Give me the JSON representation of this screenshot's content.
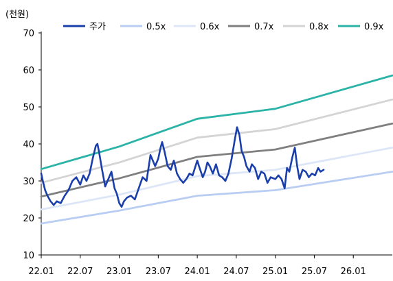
{
  "chart_data": {
    "type": "line",
    "unit_label": "(천원)",
    "ylim": [
      10,
      70
    ],
    "y_ticks": [
      10,
      20,
      30,
      40,
      50,
      60,
      70
    ],
    "x_ticks": [
      "22.01",
      "22.07",
      "23.01",
      "23.07",
      "24.01",
      "24.07",
      "25.01",
      "25.07",
      "26.01"
    ],
    "grid": false,
    "legend_position": "top",
    "series": [
      {
        "name": "주가",
        "color": "#1a3faa",
        "points": [
          [
            2022.0,
            32.0
          ],
          [
            2022.02,
            30.0
          ],
          [
            2022.05,
            27.5
          ],
          [
            2022.08,
            26.0
          ],
          [
            2022.12,
            24.5
          ],
          [
            2022.16,
            23.5
          ],
          [
            2022.2,
            24.5
          ],
          [
            2022.25,
            24.0
          ],
          [
            2022.3,
            26.0
          ],
          [
            2022.35,
            27.5
          ],
          [
            2022.4,
            30.0
          ],
          [
            2022.45,
            31.0
          ],
          [
            2022.5,
            29.0
          ],
          [
            2022.54,
            31.5
          ],
          [
            2022.58,
            30.0
          ],
          [
            2022.62,
            32.0
          ],
          [
            2022.66,
            36.0
          ],
          [
            2022.7,
            39.5
          ],
          [
            2022.72,
            40.0
          ],
          [
            2022.74,
            38.0
          ],
          [
            2022.78,
            33.0
          ],
          [
            2022.82,
            28.5
          ],
          [
            2022.86,
            30.5
          ],
          [
            2022.9,
            32.5
          ],
          [
            2022.94,
            28.0
          ],
          [
            2022.97,
            26.5
          ],
          [
            2023.0,
            24.0
          ],
          [
            2023.03,
            23.0
          ],
          [
            2023.06,
            24.5
          ],
          [
            2023.1,
            25.5
          ],
          [
            2023.15,
            26.0
          ],
          [
            2023.2,
            25.0
          ],
          [
            2023.25,
            28.0
          ],
          [
            2023.3,
            31.0
          ],
          [
            2023.35,
            30.0
          ],
          [
            2023.4,
            37.0
          ],
          [
            2023.43,
            35.5
          ],
          [
            2023.46,
            34.0
          ],
          [
            2023.5,
            36.0
          ],
          [
            2023.53,
            39.0
          ],
          [
            2023.55,
            40.5
          ],
          [
            2023.58,
            38.0
          ],
          [
            2023.62,
            34.0
          ],
          [
            2023.66,
            33.0
          ],
          [
            2023.7,
            35.5
          ],
          [
            2023.74,
            32.0
          ],
          [
            2023.78,
            30.5
          ],
          [
            2023.82,
            29.5
          ],
          [
            2023.86,
            30.5
          ],
          [
            2023.9,
            32.0
          ],
          [
            2023.94,
            31.5
          ],
          [
            2024.0,
            35.5
          ],
          [
            2024.03,
            33.5
          ],
          [
            2024.07,
            31.0
          ],
          [
            2024.1,
            32.5
          ],
          [
            2024.13,
            35.0
          ],
          [
            2024.16,
            34.0
          ],
          [
            2024.2,
            32.0
          ],
          [
            2024.24,
            34.5
          ],
          [
            2024.28,
            31.5
          ],
          [
            2024.32,
            31.0
          ],
          [
            2024.36,
            30.0
          ],
          [
            2024.4,
            32.0
          ],
          [
            2024.44,
            36.0
          ],
          [
            2024.48,
            41.0
          ],
          [
            2024.51,
            44.5
          ],
          [
            2024.54,
            42.5
          ],
          [
            2024.57,
            38.0
          ],
          [
            2024.6,
            36.5
          ],
          [
            2024.63,
            34.0
          ],
          [
            2024.67,
            32.5
          ],
          [
            2024.7,
            34.5
          ],
          [
            2024.74,
            33.5
          ],
          [
            2024.78,
            30.5
          ],
          [
            2024.82,
            32.5
          ],
          [
            2024.86,
            32.0
          ],
          [
            2024.9,
            29.5
          ],
          [
            2024.94,
            31.0
          ],
          [
            2025.0,
            30.5
          ],
          [
            2025.04,
            31.5
          ],
          [
            2025.08,
            30.5
          ],
          [
            2025.12,
            28.0
          ],
          [
            2025.15,
            33.5
          ],
          [
            2025.18,
            32.5
          ],
          [
            2025.22,
            36.5
          ],
          [
            2025.25,
            39.0
          ],
          [
            2025.28,
            34.0
          ],
          [
            2025.31,
            30.5
          ],
          [
            2025.35,
            33.0
          ],
          [
            2025.39,
            32.5
          ],
          [
            2025.43,
            31.0
          ],
          [
            2025.47,
            32.0
          ],
          [
            2025.51,
            31.5
          ],
          [
            2025.55,
            33.5
          ],
          [
            2025.58,
            32.5
          ],
          [
            2025.62,
            33.0
          ]
        ]
      },
      {
        "name": "0.5x",
        "color": "#b9cdf3",
        "points": [
          [
            2022.0,
            18.5
          ],
          [
            2023.0,
            22.0
          ],
          [
            2024.0,
            26.0
          ],
          [
            2025.0,
            27.5
          ],
          [
            2026.5,
            32.5
          ]
        ]
      },
      {
        "name": "0.6x",
        "color": "#dde6f7",
        "points": [
          [
            2022.0,
            22.3
          ],
          [
            2023.0,
            26.3
          ],
          [
            2024.0,
            31.3
          ],
          [
            2025.0,
            33.0
          ],
          [
            2026.5,
            39.0
          ]
        ]
      },
      {
        "name": "0.7x",
        "color": "#7f7f7f",
        "points": [
          [
            2022.0,
            25.8
          ],
          [
            2023.0,
            30.7
          ],
          [
            2024.0,
            36.5
          ],
          [
            2025.0,
            38.5
          ],
          [
            2026.5,
            45.5
          ]
        ]
      },
      {
        "name": "0.8x",
        "color": "#d4d4d4",
        "points": [
          [
            2022.0,
            29.5
          ],
          [
            2023.0,
            35.0
          ],
          [
            2024.0,
            41.7
          ],
          [
            2025.0,
            44.0
          ],
          [
            2026.5,
            52.0
          ]
        ]
      },
      {
        "name": "0.9x",
        "color": "#2ab3a6",
        "points": [
          [
            2022.0,
            33.2
          ],
          [
            2023.0,
            39.3
          ],
          [
            2024.0,
            46.8
          ],
          [
            2025.0,
            49.5
          ],
          [
            2026.5,
            58.5
          ]
        ]
      }
    ]
  }
}
